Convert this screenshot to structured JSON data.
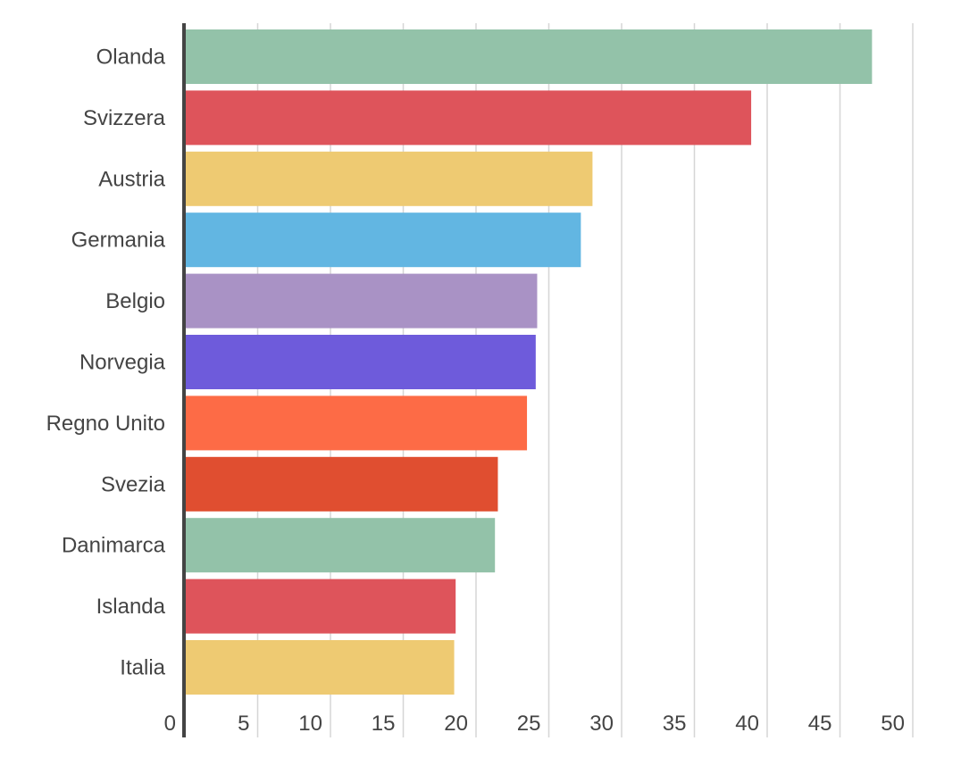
{
  "chart_data": {
    "type": "bar",
    "orientation": "horizontal",
    "categories": [
      "Olanda",
      "Svizzera",
      "Austria",
      "Germania",
      "Belgio",
      "Norvegia",
      "Regno Unito",
      "Svezia",
      "Danimarca",
      "Islanda",
      "Italia"
    ],
    "values": [
      47.2,
      38.9,
      28,
      27.2,
      24.2,
      24.1,
      23.5,
      21.5,
      21.3,
      18.6,
      18.5
    ],
    "colors": [
      "#93c2a9",
      "#de545b",
      "#eeca72",
      "#62b6e2",
      "#a992c5",
      "#6e5bdb",
      "#fd6b46",
      "#e04e30",
      "#93c2a9",
      "#de545b",
      "#eeca72"
    ],
    "xlim": [
      0,
      50
    ],
    "xticks": [
      0,
      5,
      10,
      15,
      20,
      25,
      30,
      35,
      40,
      45,
      50
    ],
    "title": "",
    "xlabel": "",
    "ylabel": "",
    "grid": "vertical",
    "legend": "none"
  }
}
